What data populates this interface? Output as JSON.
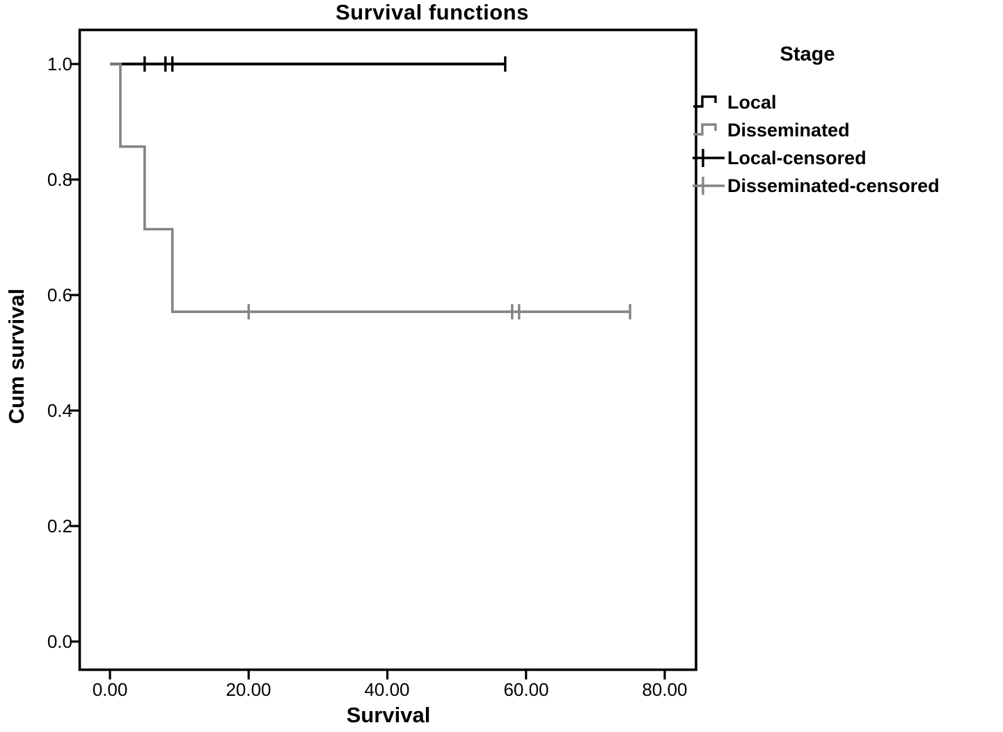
{
  "figure": {
    "title": "Survival functions",
    "x_axis_label": "Survival",
    "y_axis_label": "Cum survival"
  },
  "legend": {
    "title": "Stage",
    "items": [
      {
        "label": "Local",
        "symbol": "step-line-icon",
        "color": "#000000"
      },
      {
        "label": "Disseminated",
        "symbol": "step-line-icon",
        "color": "#848484"
      },
      {
        "label": "Local-censored",
        "symbol": "plus-mark-icon",
        "color": "#000000"
      },
      {
        "label": "Disseminated-censored",
        "symbol": "plus-mark-icon",
        "color": "#848484"
      }
    ]
  },
  "chart_data": {
    "type": "line",
    "subtype": "kaplan-meier-step",
    "title": "Survival functions",
    "xlabel": "Survival",
    "ylabel": "Cum survival",
    "grid": false,
    "legend_position": "outside-right-top",
    "xlim": [
      -4.3,
      84.5
    ],
    "ylim": [
      -0.05,
      1.06
    ],
    "xticks": {
      "values": [
        0,
        20,
        40,
        60,
        80
      ],
      "labels": [
        "0.00",
        "20.00",
        "40.00",
        "60.00",
        "80.00"
      ]
    },
    "yticks": {
      "values": [
        0.0,
        0.2,
        0.4,
        0.6,
        0.8,
        1.0
      ],
      "labels": [
        "0.0",
        "0.2",
        "0.4",
        "0.6",
        "0.8",
        "1.0"
      ]
    },
    "series": [
      {
        "name": "Local",
        "color": "#000000",
        "points": [
          [
            0,
            1.0
          ],
          [
            57,
            1.0
          ]
        ],
        "censored": [
          [
            5,
            1.0
          ],
          [
            8,
            1.0
          ],
          [
            9,
            1.0
          ],
          [
            57,
            1.0
          ]
        ]
      },
      {
        "name": "Disseminated",
        "color": "#848484",
        "points": [
          [
            0,
            1.0
          ],
          [
            1.5,
            1.0
          ],
          [
            1.5,
            0.857
          ],
          [
            5,
            0.857
          ],
          [
            5,
            0.714
          ],
          [
            9,
            0.714
          ],
          [
            9,
            0.571
          ],
          [
            75,
            0.571
          ]
        ],
        "censored": [
          [
            20,
            0.571
          ],
          [
            58,
            0.571
          ],
          [
            59,
            0.571
          ],
          [
            75,
            0.571
          ]
        ]
      }
    ]
  }
}
